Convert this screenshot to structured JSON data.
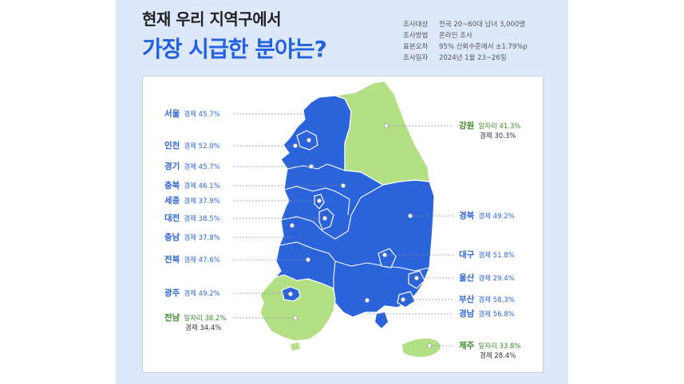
{
  "title_line1": "현재 우리 지역구에서",
  "title_line2": "가장 시급한 분야는?",
  "survey": [
    {
      "key": "조사대상",
      "value": "전국 20~60대 남녀 3,000명"
    },
    {
      "key": "조사방법",
      "value": "온라인 조사"
    },
    {
      "key": "표본오차",
      "value": "95% 신뢰수준에서 ±1.79%p"
    },
    {
      "key": "조사일자",
      "value": "2024년 1월 23~26일"
    }
  ],
  "colors": {
    "industry_blue": "#2a63da",
    "jobs_green": "#b3df85",
    "accent": "#2461e0"
  },
  "regions": {
    "seoul": {
      "name": "서울",
      "field": "경제",
      "value": "45.7%"
    },
    "incheon": {
      "name": "인천",
      "field": "경제",
      "value": "52.0%"
    },
    "gyeonggi": {
      "name": "경기",
      "field": "경제",
      "value": "45.7%"
    },
    "chungbuk": {
      "name": "충북",
      "field": "경제",
      "value": "46.1%"
    },
    "sejong": {
      "name": "세종",
      "field": "경제",
      "value": "37.9%"
    },
    "daejeon": {
      "name": "대전",
      "field": "경제",
      "value": "38.5%"
    },
    "chungnam": {
      "name": "충남",
      "field": "경제",
      "value": "37.8%"
    },
    "jeonbuk": {
      "name": "전북",
      "field": "경제",
      "value": "47.6%"
    },
    "gwangju": {
      "name": "광주",
      "field": "경제",
      "value": "49.2%"
    },
    "jeonnam": {
      "name": "전남",
      "field": "일자리",
      "value": "38.2%",
      "field2": "경제",
      "value2": "34.4%"
    },
    "gangwon": {
      "name": "강원",
      "field": "일자리",
      "value": "41.3%",
      "field2": "경제",
      "value2": "30.3%"
    },
    "gyeongbuk": {
      "name": "경북",
      "field": "경제",
      "value": "49.2%"
    },
    "daegu": {
      "name": "대구",
      "field": "경제",
      "value": "51.8%"
    },
    "ulsan": {
      "name": "울산",
      "field": "경제",
      "value": "29.4%"
    },
    "busan": {
      "name": "부산",
      "field": "경제",
      "value": "58.3%"
    },
    "gyeongnam": {
      "name": "경남",
      "field": "경제",
      "value": "56.8%"
    },
    "jeju": {
      "name": "제주",
      "field": "일자리",
      "value": "33.8%",
      "field2": "경제",
      "value2": "28.4%"
    }
  }
}
